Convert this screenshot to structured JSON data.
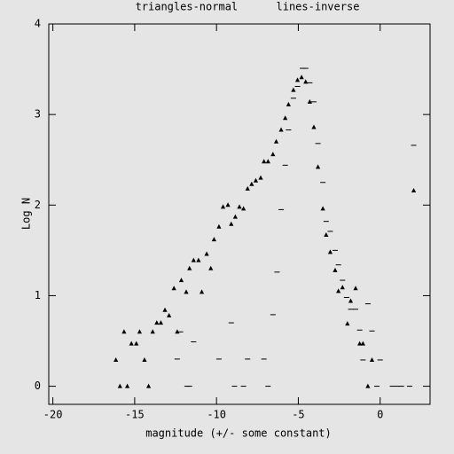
{
  "chart_data": {
    "type": "scatter",
    "title": "triangles-normal      lines-inverse",
    "x_label": "magnitude (+/- some constant)",
    "y_label": "Log N",
    "xlim": [
      -20.25,
      3.05
    ],
    "ylim": [
      -0.2,
      4
    ],
    "xticks": [
      -20,
      -15,
      -10,
      -5,
      0
    ],
    "yticks": [
      0,
      1,
      2,
      3,
      4
    ],
    "series": [
      {
        "name": "triangles-normal",
        "marker": "triangle",
        "color": "#000000",
        "x": [
          -16.15,
          -15.9,
          -15.65,
          -15.45,
          -15.2,
          -14.9,
          -14.7,
          -14.4,
          -14.15,
          -13.9,
          -13.65,
          -13.4,
          -13.15,
          -12.9,
          -12.6,
          -12.4,
          -12.15,
          -11.85,
          -11.65,
          -11.4,
          -11.1,
          -10.9,
          -10.6,
          -10.35,
          -10.15,
          -9.85,
          -9.6,
          -9.3,
          -9.1,
          -8.85,
          -8.6,
          -8.35,
          -8.1,
          -7.85,
          -7.6,
          -7.3,
          -7.1,
          -6.85,
          -6.55,
          -6.35,
          -6.05,
          -5.8,
          -5.6,
          -5.3,
          -5.05,
          -4.8,
          -4.55,
          -4.3,
          -4.05,
          -3.8,
          -3.5,
          -3.3,
          -3.05,
          -2.75,
          -2.55,
          -2.3,
          -2.0,
          -1.8,
          -1.5,
          -1.25,
          -1.05,
          -0.75,
          -0.5,
          2.05
        ],
        "values": [
          0.29,
          0,
          0.6,
          0,
          0.47,
          0.47,
          0.6,
          0.29,
          0,
          0.6,
          0.7,
          0.7,
          0.84,
          0.78,
          1.08,
          0.6,
          1.17,
          1.04,
          1.3,
          1.39,
          1.39,
          1.04,
          1.46,
          1.3,
          1.62,
          1.76,
          1.98,
          2.0,
          1.79,
          1.87,
          1.98,
          1.96,
          2.18,
          2.23,
          2.27,
          2.3,
          2.48,
          2.48,
          2.56,
          2.7,
          2.83,
          2.96,
          3.11,
          3.27,
          3.38,
          3.41,
          3.36,
          3.14,
          2.86,
          2.42,
          1.96,
          1.67,
          1.48,
          1.28,
          1.05,
          1.09,
          0.69,
          0.94,
          1.08,
          0.47,
          0.47,
          0,
          0.29,
          2.16
        ]
      },
      {
        "name": "lines-inverse",
        "marker": "dash",
        "color": "#000000",
        "x": [
          -12.4,
          -12.2,
          -11.8,
          -11.65,
          -11.4,
          -9.85,
          -9.1,
          -8.9,
          -8.35,
          -8.1,
          -7.1,
          -6.85,
          -6.55,
          -6.3,
          -6.05,
          -5.8,
          -5.6,
          -5.3,
          -5.05,
          -4.75,
          -4.55,
          -4.3,
          -4.05,
          -3.8,
          -3.5,
          -3.3,
          -3.05,
          -2.75,
          -2.55,
          -2.3,
          -2.05,
          -1.8,
          -1.5,
          -1.25,
          -1.05,
          -0.75,
          -0.5,
          -0.2,
          0,
          0.75,
          1.05,
          1.3,
          1.8,
          2.05
        ],
        "values": [
          0.3,
          0.6,
          0,
          0,
          0.49,
          0.3,
          0.7,
          0,
          0,
          0.3,
          0.3,
          0,
          0.79,
          1.26,
          1.95,
          2.44,
          2.83,
          3.18,
          3.31,
          3.51,
          3.51,
          3.35,
          3.14,
          2.68,
          2.25,
          1.82,
          1.71,
          1.5,
          1.34,
          1.17,
          0.98,
          0.85,
          0.85,
          0.62,
          0.29,
          0.91,
          0.61,
          0,
          0.29,
          0,
          0,
          0,
          0,
          2.66
        ]
      }
    ]
  }
}
